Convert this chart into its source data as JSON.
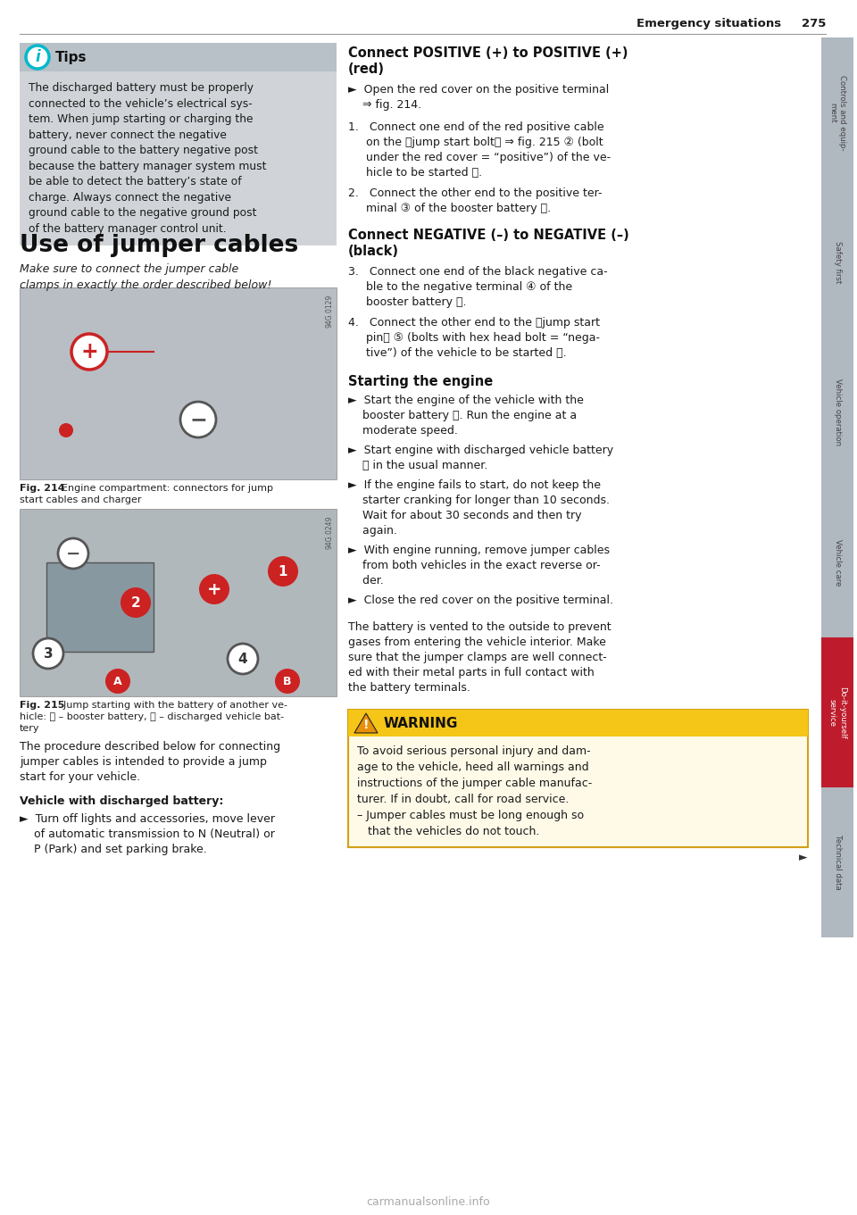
{
  "page_title": "Emergency situations",
  "page_number": "275",
  "bg_color": "#ffffff",
  "tips_box": {
    "header_bg": "#b8c0c8",
    "body_bg": "#d0d4d8",
    "title": "Tips",
    "icon_color": "#00b8cc",
    "text_lines": [
      "The discharged battery must be properly",
      "connected to the vehicle’s electrical sys-",
      "tem. When jump starting or charging the",
      "battery, never connect the negative",
      "ground cable to the battery negative post",
      "because the battery manager system must",
      "be able to detect the battery’s state of",
      "charge. Always connect the negative",
      "ground cable to the negative ground post",
      "of the battery manager control unit."
    ]
  },
  "section_title": "Use of jumper cables",
  "section_subtitle_lines": [
    "Make sure to connect the jumper cable",
    "clamps in exactly the order described below!"
  ],
  "fig214_caption_bold": "Fig. 214",
  "fig214_caption_rest": "  Engine compartment: connectors for jump\nstart cables and charger",
  "fig215_caption_bold": "Fig. 215",
  "fig215_caption_rest": "  Jump starting with the battery of another ve-\nhicle: Ⓐ – booster battery, Ⓑ – discharged vehicle bat-\ntery",
  "procedure_lines": [
    "The procedure described below for connecting",
    "jumper cables is intended to provide a jump",
    "start for your vehicle."
  ],
  "vehicle_header": "Vehicle with discharged battery:",
  "vehicle_lines": [
    "►  Turn off lights and accessories, move lever",
    "    of automatic transmission to N (Neutral) or",
    "    P (Park) and set parking brake."
  ],
  "right_connect_pos_line1": "Connect POSITIVE (+) to POSITIVE (+)",
  "right_connect_pos_line2": "(red)",
  "right_open_cover_lines": [
    "►  Open the red cover on the positive terminal",
    "    ⇒ fig. 214."
  ],
  "right_step1_lines": [
    "1.   Connect one end of the red positive cable",
    "     on the ⁧jump start bolt⁩ ⇒ fig. 215 ② (bolt",
    "     under the red cover = “positive”) of the ve-",
    "     hicle to be started Ⓑ."
  ],
  "right_step2_lines": [
    "2.   Connect the other end to the positive ter-",
    "     minal ③ of the booster battery Ⓐ."
  ],
  "right_connect_neg_line1": "Connect NEGATIVE (–) to NEGATIVE (–)",
  "right_connect_neg_line2": "(black)",
  "right_step3_lines": [
    "3.   Connect one end of the black negative ca-",
    "     ble to the negative terminal ④ of the",
    "     booster battery Ⓐ."
  ],
  "right_step4_lines": [
    "4.   Connect the other end to the ⁧jump start",
    "     pin⁩ ⑤ (bolts with hex head bolt = “nega-",
    "     tive”) of the vehicle to be started Ⓑ."
  ],
  "starting_title": "Starting the engine",
  "starting_bullets": [
    [
      "►  Start the engine of the vehicle with the",
      "    booster battery Ⓐ. Run the engine at a",
      "    moderate speed."
    ],
    [
      "►  Start engine with discharged vehicle battery",
      "    Ⓑ in the usual manner."
    ],
    [
      "►  If the engine fails to start, do not keep the",
      "    starter cranking for longer than 10 seconds.",
      "    Wait for about 30 seconds and then try",
      "    again."
    ],
    [
      "►  With engine running, remove jumper cables",
      "    from both vehicles in the exact reverse or-",
      "    der."
    ],
    [
      "►  Close the red cover on the positive terminal."
    ]
  ],
  "battery_vented_lines": [
    "The battery is vented to the outside to prevent",
    "gases from entering the vehicle interior. Make",
    "sure that the jumper clamps are well connect-",
    "ed with their metal parts in full contact with",
    "the battery terminals."
  ],
  "warning_title": "WARNING",
  "warning_lines": [
    "To avoid serious personal injury and dam-",
    "age to the vehicle, heed all warnings and",
    "instructions of the jumper cable manufac-",
    "turer. If in doubt, call for road service.",
    "– Jumper cables must be long enough so",
    "   that the vehicles do not touch."
  ],
  "right_tabs": [
    "Controls and equip-\nment",
    "Safety first",
    "Vehicle operation",
    "Vehicle care",
    "Do-it-yourself\nservice",
    "Technical data"
  ],
  "tab_colors": [
    "#b0b8c0",
    "#b0b8c0",
    "#b0b8c0",
    "#b0b8c0",
    "#be1c2c",
    "#b0b8c0"
  ],
  "tab_text_colors": [
    "#444444",
    "#444444",
    "#444444",
    "#444444",
    "#ffffff",
    "#444444"
  ],
  "watermark": "carmanualsonline.info",
  "arrow_right": "►"
}
